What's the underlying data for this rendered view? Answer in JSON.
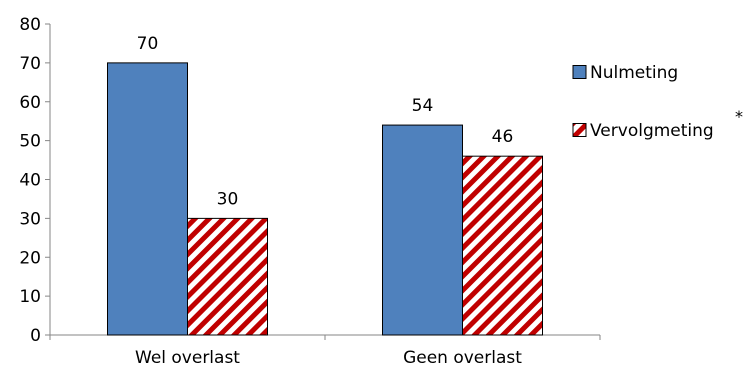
{
  "chart_data": {
    "type": "bar",
    "categories": [
      "Wel overlast",
      "Geen overlast"
    ],
    "series": [
      {
        "name": "Nulmeting",
        "values": [
          70,
          54
        ],
        "color": "#4f81bd",
        "pattern": "solid"
      },
      {
        "name": "Vervolgmeting",
        "values": [
          30,
          46
        ],
        "color": "#c00000",
        "pattern": "diagonal-stripes"
      }
    ],
    "ylim": [
      0,
      80
    ],
    "yticks": [
      0,
      10,
      20,
      30,
      40,
      50,
      60,
      70,
      80
    ],
    "data_labels": true,
    "grid": false,
    "legend_position": "right",
    "legend_marker": "*"
  }
}
